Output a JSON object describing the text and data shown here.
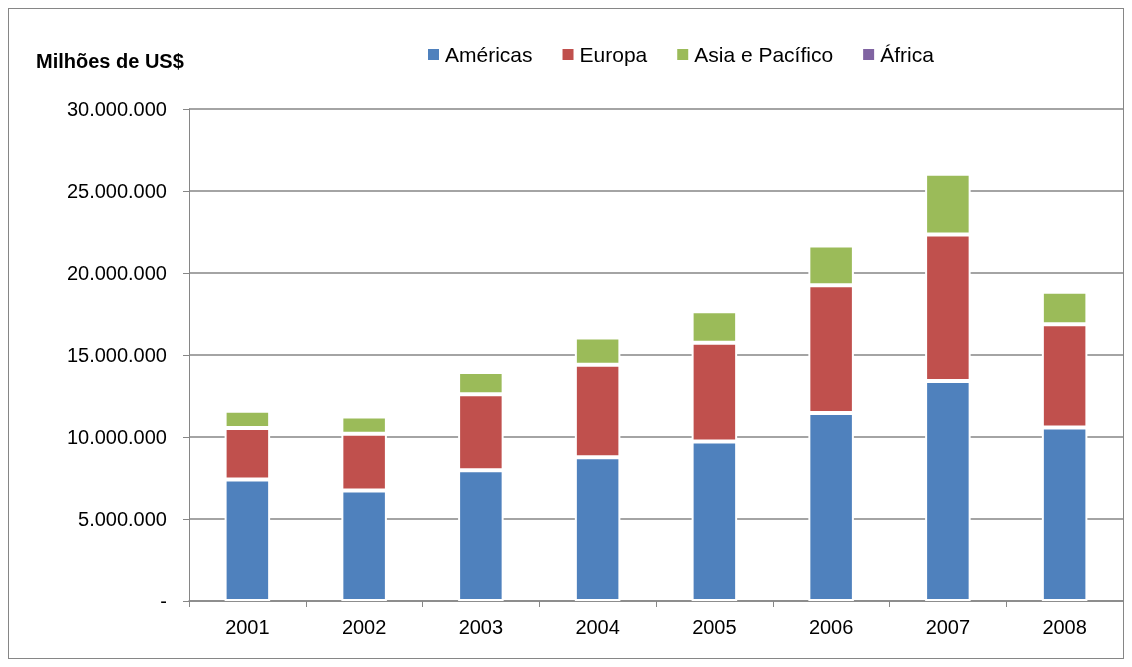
{
  "chart_data": {
    "type": "bar",
    "stacked": true,
    "ylabel": "Milhões de US$",
    "categories": [
      "2001",
      "2002",
      "2003",
      "2004",
      "2005",
      "2006",
      "2007",
      "2008"
    ],
    "series": [
      {
        "name": "Américas",
        "color": "#4f81bd",
        "values": [
          7410000,
          6740000,
          7970000,
          8760000,
          9730000,
          11460000,
          13420000,
          10580000
        ]
      },
      {
        "name": "Europa",
        "color": "#c0504d",
        "values": [
          3140000,
          3460000,
          4640000,
          5650000,
          6010000,
          7790000,
          8920000,
          6300000
        ]
      },
      {
        "name": "Asia e Pacífico",
        "color": "#9bbb59",
        "values": [
          1050000,
          1050000,
          1350000,
          1660000,
          1930000,
          2430000,
          3710000,
          1970000
        ]
      },
      {
        "name": "África",
        "color": "#8064a2",
        "values": [
          null,
          null,
          null,
          null,
          null,
          null,
          null,
          null
        ]
      }
    ],
    "ylim": [
      0,
      30000000
    ],
    "yticks": [
      {
        "value": 0,
        "label": "-"
      },
      {
        "value": 5000000,
        "label": "5.000.000"
      },
      {
        "value": 10000000,
        "label": "10.000.000"
      },
      {
        "value": 15000000,
        "label": "15.000.000"
      },
      {
        "value": 20000000,
        "label": "20.000.000"
      },
      {
        "value": 25000000,
        "label": "25.000.000"
      },
      {
        "value": 30000000,
        "label": "30.000.000"
      }
    ],
    "grid": "y",
    "legend": "top"
  }
}
